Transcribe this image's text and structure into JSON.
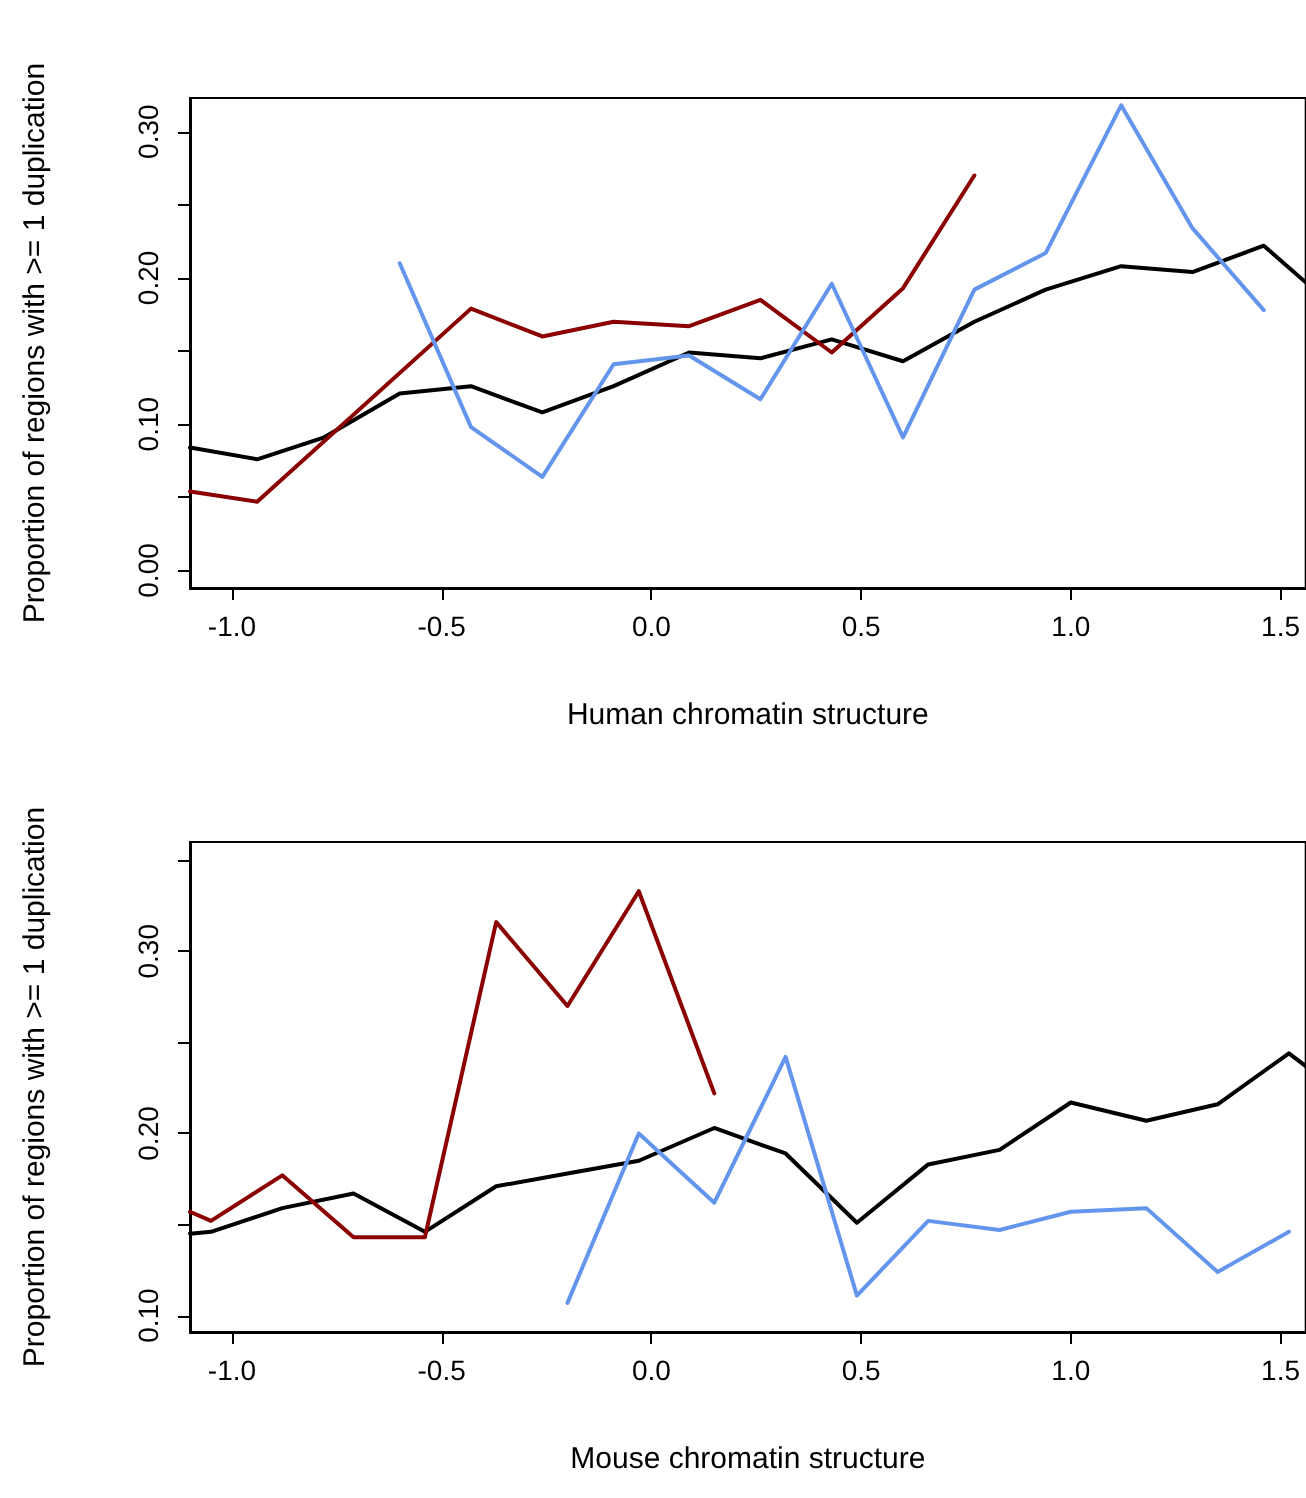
{
  "chart_data": [
    {
      "type": "line",
      "xlabel": "Human chromatin structure",
      "ylabel": "Proportion of regions with >= 1 duplication",
      "xlim": [
        -1.1,
        1.56
      ],
      "ylim": [
        -0.012,
        0.323
      ],
      "xticks": [
        {
          "value": -1,
          "label": "-1.0"
        },
        {
          "value": -0.5,
          "label": "-0.5"
        },
        {
          "value": 0,
          "label": "0.0"
        },
        {
          "value": 0.5,
          "label": "0.5"
        },
        {
          "value": 1,
          "label": "1.0"
        },
        {
          "value": 1.5,
          "label": "1.5"
        }
      ],
      "yticks": [
        {
          "value": 0,
          "label": "0.00"
        },
        {
          "value": 0.05,
          "label": null
        },
        {
          "value": 0.1,
          "label": "0.10"
        },
        {
          "value": 0.15,
          "label": null
        },
        {
          "value": 0.2,
          "label": "0.20"
        },
        {
          "value": 0.25,
          "label": null
        },
        {
          "value": 0.3,
          "label": "0.30"
        }
      ],
      "grid": false,
      "marker": "none",
      "line_style": "solid",
      "series": [
        {
          "color": "#000000",
          "x": [
            -1.1,
            -0.94,
            -0.78,
            -0.6,
            -0.43,
            -0.26,
            -0.09,
            0.09,
            0.26,
            0.43,
            0.6,
            0.77,
            0.94,
            1.12,
            1.29,
            1.46,
            1.56
          ],
          "values": [
            0.084,
            0.076,
            0.091,
            0.121,
            0.126,
            0.108,
            0.126,
            0.149,
            0.145,
            0.158,
            0.143,
            0.17,
            0.192,
            0.208,
            0.204,
            0.222,
            0.197
          ]
        },
        {
          "color": "#8b0000",
          "x": [
            -1.1,
            -0.94,
            -0.43,
            -0.26,
            -0.09,
            0.09,
            0.26,
            0.43,
            0.6,
            0.77
          ],
          "values": [
            0.054,
            0.047,
            0.179,
            0.16,
            0.17,
            0.167,
            0.185,
            0.149,
            0.193,
            0.27
          ]
        },
        {
          "color": "#6495ed",
          "x": [
            -0.6,
            -0.43,
            -0.26,
            -0.09,
            0.09,
            0.26,
            0.43,
            0.6,
            0.77,
            0.94,
            1.12,
            1.29,
            1.46
          ],
          "values": [
            0.21,
            0.098,
            0.064,
            0.141,
            0.147,
            0.117,
            0.196,
            0.091,
            0.192,
            0.217,
            0.318,
            0.234,
            0.178
          ]
        }
      ]
    },
    {
      "type": "line",
      "xlabel": "Mouse chromatin structure",
      "ylabel": "Proportion of regions with >= 1 duplication",
      "xlim": [
        -1.1,
        1.56
      ],
      "ylim": [
        0.091,
        0.36
      ],
      "xticks": [
        {
          "value": -1,
          "label": "-1.0"
        },
        {
          "value": -0.5,
          "label": "-0.5"
        },
        {
          "value": 0,
          "label": "0.0"
        },
        {
          "value": 0.5,
          "label": "0.5"
        },
        {
          "value": 1,
          "label": "1.0"
        },
        {
          "value": 1.5,
          "label": "1.5"
        }
      ],
      "yticks": [
        {
          "value": 0.1,
          "label": "0.10"
        },
        {
          "value": 0.15,
          "label": null
        },
        {
          "value": 0.2,
          "label": "0.20"
        },
        {
          "value": 0.25,
          "label": null
        },
        {
          "value": 0.3,
          "label": "0.30"
        },
        {
          "value": 0.35,
          "label": null
        }
      ],
      "grid": false,
      "marker": "none",
      "line_style": "solid",
      "series": [
        {
          "color": "#000000",
          "x": [
            -1.1,
            -1.05,
            -0.88,
            -0.71,
            -0.54,
            -0.37,
            -0.2,
            -0.03,
            0.15,
            0.32,
            0.49,
            0.66,
            0.83,
            1.0,
            1.18,
            1.35,
            1.52,
            1.56
          ],
          "values": [
            0.145,
            0.146,
            0.159,
            0.167,
            0.146,
            0.171,
            0.178,
            0.185,
            0.203,
            0.189,
            0.151,
            0.183,
            0.191,
            0.217,
            0.207,
            0.216,
            0.244,
            0.237
          ]
        },
        {
          "color": "#8b0000",
          "x": [
            -1.1,
            -1.05,
            -0.88,
            -0.71,
            -0.54,
            -0.37,
            -0.2,
            -0.03,
            0.15
          ],
          "values": [
            0.157,
            0.152,
            0.177,
            0.143,
            0.143,
            0.316,
            0.27,
            0.333,
            0.222
          ]
        },
        {
          "color": "#6495ed",
          "x": [
            -0.2,
            -0.03,
            0.15,
            0.32,
            0.49,
            0.66,
            0.83,
            1.0,
            1.18,
            1.35,
            1.52
          ],
          "values": [
            0.107,
            0.2,
            0.162,
            0.242,
            0.111,
            0.152,
            0.147,
            0.157,
            0.159,
            0.124,
            0.146
          ]
        }
      ]
    }
  ]
}
